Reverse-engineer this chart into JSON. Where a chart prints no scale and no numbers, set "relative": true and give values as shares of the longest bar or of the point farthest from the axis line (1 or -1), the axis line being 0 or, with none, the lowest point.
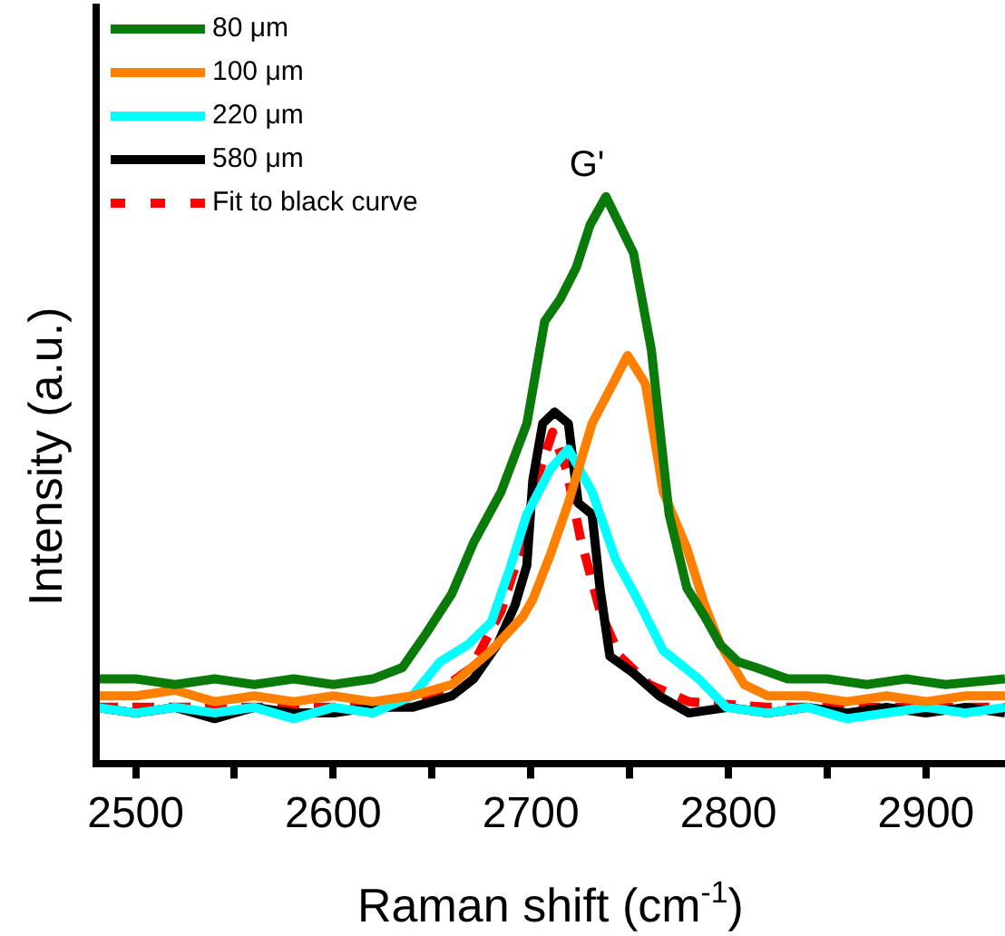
{
  "chart_data": {
    "type": "line",
    "title": null,
    "xlabel": "Raman shift (cm$^{-1}$)",
    "ylabel": "Intensity (a.u.)",
    "relative": true,
    "xlim": [
      2480,
      2940
    ],
    "xticks": [
      2500,
      {
        "value": 2550,
        "label": null
      },
      2600,
      {
        "value": 2650,
        "label": null
      },
      2700,
      {
        "value": 2750,
        "label": null
      },
      2800,
      {
        "value": 2850,
        "label": null
      },
      2900
    ],
    "grid": false,
    "legend": "top left",
    "marker": "none",
    "annotations": [
      "G'"
    ],
    "series": [
      {
        "name": "80 μm",
        "color": "#0a7a0a",
        "x": [
          2480,
          2500,
          2520,
          2540,
          2560,
          2580,
          2600,
          2620,
          2635,
          2647,
          2660,
          2671,
          2685,
          2698,
          2707,
          2715,
          2723,
          2730,
          2738,
          2745,
          2752,
          2761,
          2770,
          2779,
          2788,
          2796,
          2805,
          2814,
          2830,
          2850,
          2870,
          2890,
          2910,
          2940
        ],
        "values": [
          0.15,
          0.15,
          0.14,
          0.15,
          0.14,
          0.15,
          0.14,
          0.15,
          0.17,
          0.23,
          0.3,
          0.39,
          0.48,
          0.6,
          0.78,
          0.82,
          0.875,
          0.95,
          1.0,
          0.95,
          0.9,
          0.73,
          0.44,
          0.31,
          0.26,
          0.21,
          0.18,
          0.17,
          0.15,
          0.15,
          0.14,
          0.15,
          0.14,
          0.15
        ]
      },
      {
        "name": "100 μm",
        "color": "#ff8000",
        "x": [
          2480,
          2500,
          2520,
          2540,
          2560,
          2580,
          2600,
          2620,
          2640,
          2660,
          2680,
          2696,
          2701,
          2710,
          2719,
          2731,
          2743,
          2749,
          2758,
          2767,
          2779,
          2788,
          2796,
          2808,
          2820,
          2840,
          2860,
          2880,
          2900,
          2920,
          2940
        ],
        "values": [
          0.12,
          0.12,
          0.13,
          0.11,
          0.12,
          0.11,
          0.12,
          0.11,
          0.12,
          0.14,
          0.2,
          0.26,
          0.29,
          0.37,
          0.46,
          0.6,
          0.68,
          0.72,
          0.67,
          0.48,
          0.38,
          0.28,
          0.21,
          0.14,
          0.12,
          0.12,
          0.11,
          0.12,
          0.11,
          0.12,
          0.12
        ]
      },
      {
        "name": "220 μm",
        "color": "#00ffff",
        "x": [
          2480,
          2500,
          2520,
          2540,
          2560,
          2580,
          2600,
          2620,
          2640,
          2654,
          2668,
          2680,
          2689,
          2698,
          2710,
          2719,
          2731,
          2743,
          2754,
          2767,
          2785,
          2799,
          2820,
          2840,
          2860,
          2880,
          2900,
          2920,
          2940
        ],
        "values": [
          0.1,
          0.09,
          0.1,
          0.09,
          0.1,
          0.08,
          0.1,
          0.09,
          0.12,
          0.18,
          0.21,
          0.25,
          0.34,
          0.44,
          0.52,
          0.555,
          0.48,
          0.36,
          0.29,
          0.2,
          0.15,
          0.1,
          0.09,
          0.1,
          0.08,
          0.09,
          0.1,
          0.09,
          0.1
        ]
      },
      {
        "name": "580 μm",
        "color": "#000000",
        "x": [
          2480,
          2500,
          2520,
          2540,
          2560,
          2580,
          2600,
          2620,
          2640,
          2660,
          2671,
          2683,
          2692,
          2698,
          2701,
          2706,
          2712,
          2719,
          2724,
          2731,
          2735,
          2740,
          2752,
          2765,
          2780,
          2800,
          2820,
          2840,
          2860,
          2880,
          2900,
          2920,
          2940
        ],
        "values": [
          0.1,
          0.09,
          0.1,
          0.08,
          0.1,
          0.09,
          0.09,
          0.1,
          0.1,
          0.12,
          0.15,
          0.21,
          0.28,
          0.35,
          0.5,
          0.6,
          0.62,
          0.6,
          0.46,
          0.44,
          0.31,
          0.19,
          0.16,
          0.12,
          0.09,
          0.1,
          0.09,
          0.1,
          0.09,
          0.1,
          0.09,
          0.1,
          0.09
        ]
      },
      {
        "name": "Fit to black curve",
        "color": "#ff0000",
        "line_style": "dashed",
        "x": [
          2480,
          2550,
          2620,
          2650,
          2670,
          2685,
          2695,
          2703,
          2711,
          2718,
          2725,
          2735,
          2745,
          2760,
          2780,
          2820,
          2880,
          2940
        ],
        "values": [
          0.1,
          0.1,
          0.1,
          0.12,
          0.17,
          0.27,
          0.38,
          0.5,
          0.585,
          0.52,
          0.4,
          0.27,
          0.19,
          0.14,
          0.11,
          0.1,
          0.1,
          0.1
        ]
      }
    ]
  }
}
